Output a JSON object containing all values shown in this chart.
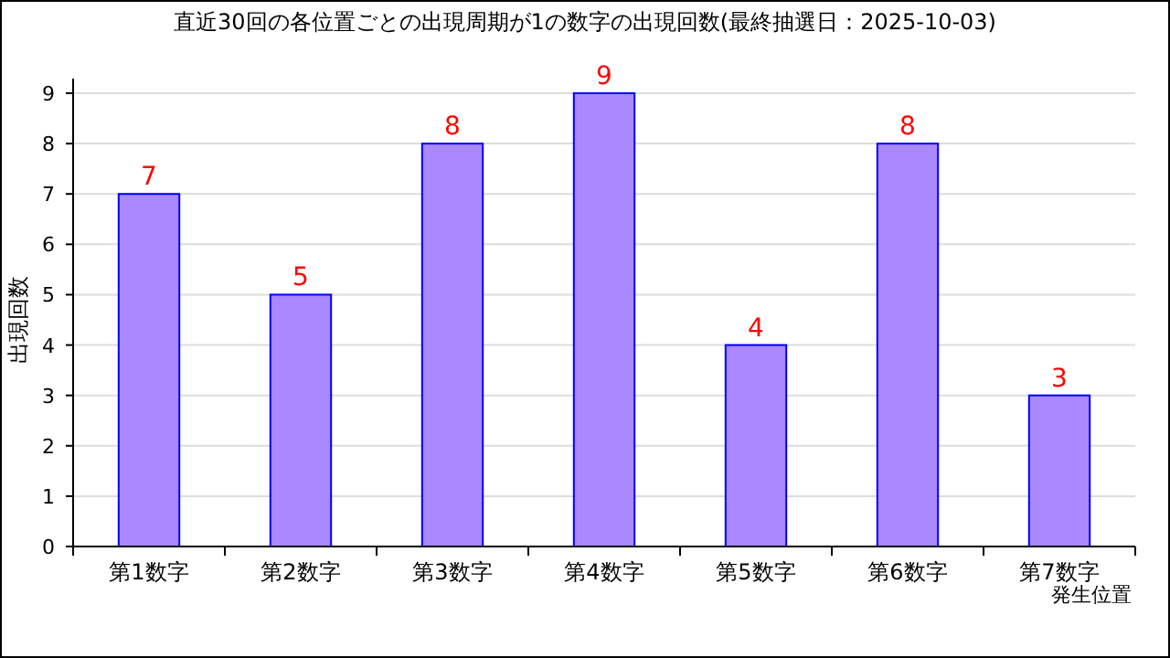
{
  "chart_data": {
    "type": "bar",
    "title": "直近30回の各位置ごとの出現周期が1の数字の出現回数(最終抽選日：2025-10-03)",
    "xlabel": "発生位置",
    "ylabel": "出現回数",
    "categories": [
      "第1数字",
      "第2数字",
      "第3数字",
      "第4数字",
      "第5数字",
      "第6数字",
      "第7数字"
    ],
    "values": [
      7,
      5,
      8,
      9,
      4,
      8,
      3
    ],
    "color": "#aa88ff",
    "ylim": [
      0,
      9
    ],
    "yticks": [
      0,
      1,
      2,
      3,
      4,
      5,
      6,
      7,
      8,
      9
    ],
    "grid": "y",
    "data_labels": true
  }
}
